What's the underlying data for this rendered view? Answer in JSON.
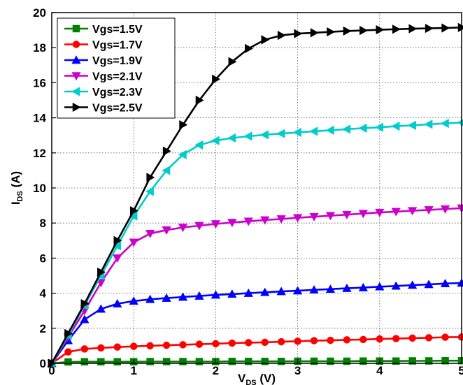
{
  "chart_data": {
    "type": "line",
    "title": "",
    "xlabel": {
      "main": "V",
      "sub": "DS",
      "suffix": " (V)"
    },
    "ylabel": {
      "main": "I",
      "sub": "DS",
      "suffix": " (A)"
    },
    "xlim": [
      0,
      5
    ],
    "ylim": [
      0,
      20
    ],
    "xticks": [
      "0",
      "1",
      "2",
      "3",
      "4",
      "5"
    ],
    "yticks": [
      "0",
      "2",
      "4",
      "6",
      "8",
      "10",
      "12",
      "14",
      "16",
      "18",
      "20"
    ],
    "grid": true,
    "legend_position": "top-left",
    "series": [
      {
        "name": "Vgs=1.5V",
        "color": "#008000",
        "marker": "square",
        "x": [
          0,
          0.2,
          0.4,
          0.6,
          0.8,
          1.0,
          1.2,
          1.4,
          1.6,
          1.8,
          2.0,
          2.2,
          2.4,
          2.6,
          2.8,
          3.0,
          3.2,
          3.4,
          3.6,
          3.8,
          4.0,
          4.2,
          4.4,
          4.6,
          4.8,
          5.0
        ],
        "y": [
          0,
          0.08,
          0.09,
          0.09,
          0.09,
          0.09,
          0.1,
          0.1,
          0.1,
          0.1,
          0.1,
          0.11,
          0.11,
          0.11,
          0.11,
          0.12,
          0.12,
          0.12,
          0.12,
          0.13,
          0.13,
          0.13,
          0.14,
          0.14,
          0.15,
          0.15
        ]
      },
      {
        "name": "Vgs=1.7V",
        "color": "#ff0000",
        "marker": "circle",
        "x": [
          0,
          0.2,
          0.4,
          0.6,
          0.8,
          1.0,
          1.2,
          1.4,
          1.6,
          1.8,
          2.0,
          2.2,
          2.4,
          2.6,
          2.8,
          3.0,
          3.2,
          3.4,
          3.6,
          3.8,
          4.0,
          4.2,
          4.4,
          4.6,
          4.8,
          5.0
        ],
        "y": [
          0,
          0.65,
          0.82,
          0.88,
          0.93,
          0.97,
          1.0,
          1.03,
          1.06,
          1.09,
          1.12,
          1.15,
          1.18,
          1.2,
          1.23,
          1.26,
          1.29,
          1.31,
          1.34,
          1.36,
          1.39,
          1.41,
          1.44,
          1.46,
          1.49,
          1.5
        ]
      },
      {
        "name": "Vgs=1.9V",
        "color": "#0000ff",
        "marker": "triangle-up",
        "x": [
          0,
          0.2,
          0.4,
          0.6,
          0.8,
          1.0,
          1.2,
          1.4,
          1.6,
          1.8,
          2.0,
          2.2,
          2.4,
          2.6,
          2.8,
          3.0,
          3.2,
          3.4,
          3.6,
          3.8,
          4.0,
          4.2,
          4.4,
          4.6,
          4.8,
          5.0
        ],
        "y": [
          0,
          1.3,
          2.5,
          3.1,
          3.4,
          3.55,
          3.65,
          3.72,
          3.78,
          3.84,
          3.9,
          3.95,
          4.0,
          4.05,
          4.1,
          4.14,
          4.19,
          4.23,
          4.28,
          4.32,
          4.37,
          4.41,
          4.46,
          4.5,
          4.55,
          4.58
        ]
      },
      {
        "name": "Vgs=2.1V",
        "color": "#cc00cc",
        "marker": "triangle-down",
        "x": [
          0,
          0.2,
          0.4,
          0.6,
          0.8,
          1.0,
          1.2,
          1.4,
          1.6,
          1.8,
          2.0,
          2.2,
          2.4,
          2.6,
          2.8,
          3.0,
          3.2,
          3.4,
          3.6,
          3.8,
          4.0,
          4.2,
          4.4,
          4.6,
          4.8,
          5.0
        ],
        "y": [
          0,
          1.5,
          3.0,
          4.6,
          6.0,
          6.9,
          7.4,
          7.6,
          7.75,
          7.85,
          7.95,
          8.03,
          8.1,
          8.17,
          8.23,
          8.3,
          8.36,
          8.42,
          8.48,
          8.54,
          8.6,
          8.65,
          8.7,
          8.75,
          8.8,
          8.85
        ]
      },
      {
        "name": "Vgs=2.3V",
        "color": "#00cccc",
        "marker": "triangle-left",
        "x": [
          0,
          0.2,
          0.4,
          0.6,
          0.8,
          1.0,
          1.2,
          1.4,
          1.6,
          1.8,
          2.0,
          2.2,
          2.4,
          2.6,
          2.8,
          3.0,
          3.2,
          3.4,
          3.6,
          3.8,
          4.0,
          4.2,
          4.4,
          4.6,
          4.8,
          5.0
        ],
        "y": [
          0,
          1.6,
          3.3,
          5.0,
          6.7,
          8.4,
          9.8,
          11.0,
          11.9,
          12.45,
          12.7,
          12.85,
          12.95,
          13.03,
          13.1,
          13.17,
          13.23,
          13.29,
          13.35,
          13.41,
          13.46,
          13.52,
          13.57,
          13.63,
          13.68,
          13.73
        ]
      },
      {
        "name": "Vgs=2.5V",
        "color": "#000000",
        "marker": "triangle-right",
        "x": [
          0,
          0.2,
          0.4,
          0.6,
          0.8,
          1.0,
          1.2,
          1.4,
          1.6,
          1.8,
          2.0,
          2.2,
          2.4,
          2.6,
          2.8,
          3.0,
          3.2,
          3.4,
          3.6,
          3.8,
          4.0,
          4.2,
          4.4,
          4.6,
          4.8,
          5.0
        ],
        "y": [
          0,
          1.7,
          3.4,
          5.2,
          7.0,
          8.7,
          10.6,
          12.1,
          13.6,
          15.0,
          16.2,
          17.2,
          17.95,
          18.45,
          18.7,
          18.8,
          18.85,
          18.9,
          18.95,
          18.98,
          19.02,
          19.05,
          19.08,
          19.1,
          19.12,
          19.15
        ]
      }
    ]
  }
}
